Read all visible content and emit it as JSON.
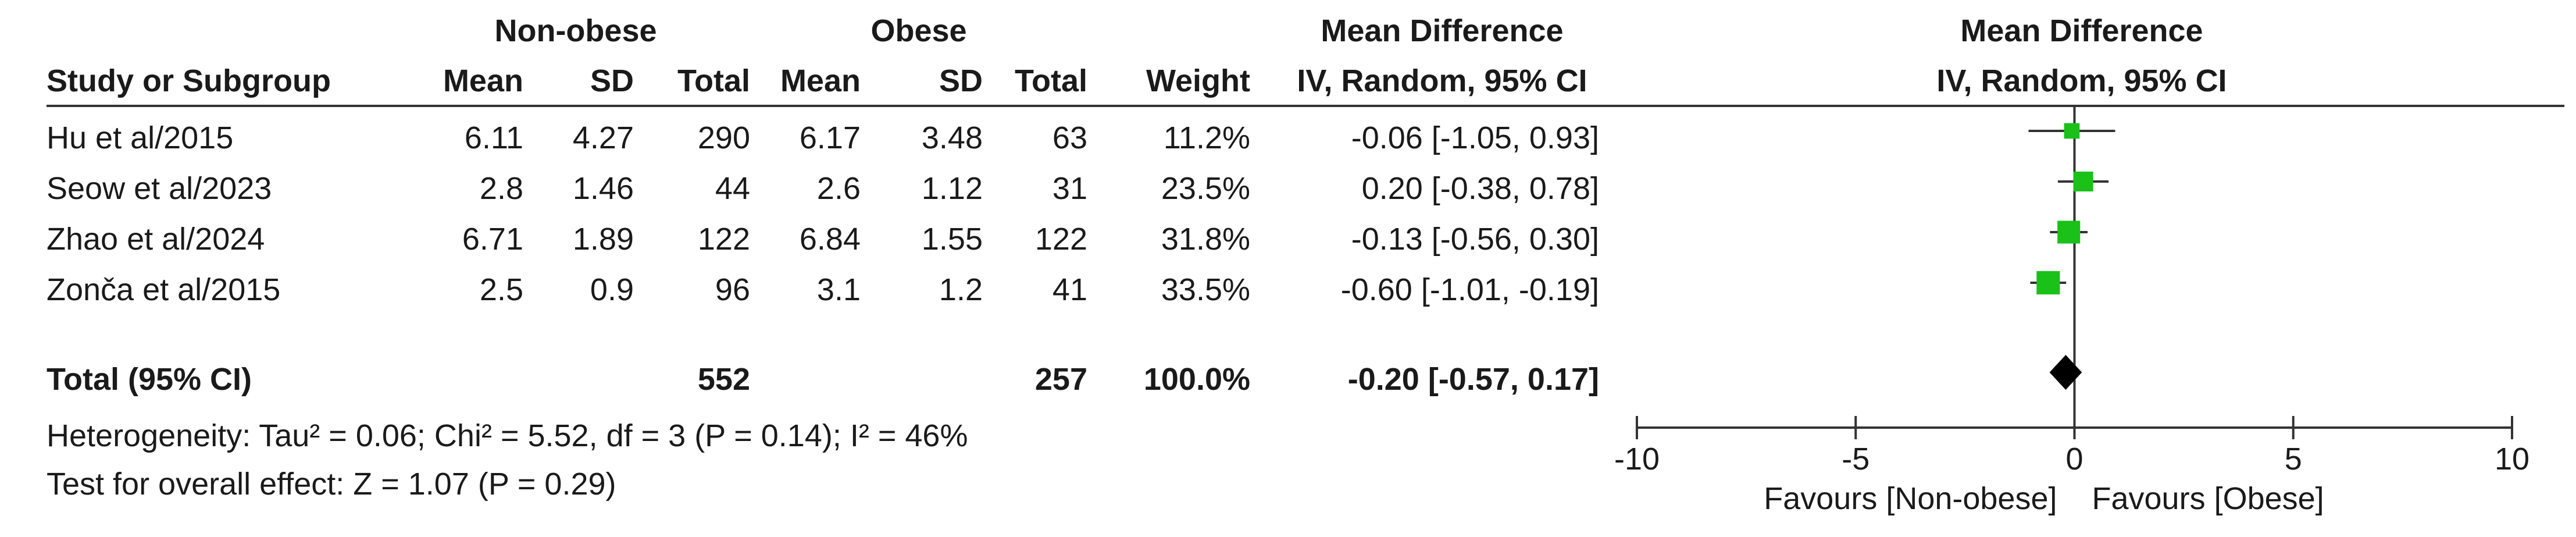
{
  "header": {
    "group1": "Non-obese",
    "group2": "Obese",
    "md_effect_title": "Mean Difference",
    "md_plot_title": "Mean Difference",
    "study_col": "Study or Subgroup",
    "mean1": "Mean",
    "sd1": "SD",
    "total1": "Total",
    "mean2": "Mean",
    "sd2": "SD",
    "total2": "Total",
    "weight": "Weight",
    "method": "IV, Random, 95% CI",
    "plot_method": "IV, Random, 95% CI"
  },
  "studies": [
    {
      "name": "Hu et al/2015",
      "mean1": "6.11",
      "sd1": "4.27",
      "total1": "290",
      "mean2": "6.17",
      "sd2": "3.48",
      "total2": "63",
      "weight": "11.2%",
      "ci": "-0.06 [-1.05, 0.93]"
    },
    {
      "name": "Seow et al/2023",
      "mean1": "2.8",
      "sd1": "1.46",
      "total1": "44",
      "mean2": "2.6",
      "sd2": "1.12",
      "total2": "31",
      "weight": "23.5%",
      "ci": "0.20 [-0.38, 0.78]"
    },
    {
      "name": "Zhao et al/2024",
      "mean1": "6.71",
      "sd1": "1.89",
      "total1": "122",
      "mean2": "6.84",
      "sd2": "1.55",
      "total2": "122",
      "weight": "31.8%",
      "ci": "-0.13 [-0.56, 0.30]"
    },
    {
      "name": "Zonča et al/2015",
      "mean1": "2.5",
      "sd1": "0.9",
      "total1": "96",
      "mean2": "3.1",
      "sd2": "1.2",
      "total2": "41",
      "weight": "33.5%",
      "ci": "-0.60 [-1.01, -0.19]"
    }
  ],
  "total": {
    "label": "Total (95% CI)",
    "total1": "552",
    "total2": "257",
    "weight": "100.0%",
    "ci": "-0.20 [-0.57, 0.17]"
  },
  "footer": {
    "heterogeneity": "Heterogeneity: Tau² = 0.06; Chi² = 5.52, df = 3 (P = 0.14); I² = 46%",
    "overall": "Test for overall effect: Z = 1.07 (P = 0.29)"
  },
  "colors": {
    "marker": "#19c119",
    "diamond": "#000000",
    "line": "#333333"
  },
  "chart_data": {
    "type": "forest",
    "xlim": [
      -10,
      10
    ],
    "ticks": [
      -10,
      -5,
      0,
      5,
      10
    ],
    "tick_labels": [
      "-10",
      "-5",
      "0",
      "5",
      "10"
    ],
    "favours_left": "Favours [Non-obese]",
    "favours_right": "Favours [Obese]",
    "series": [
      {
        "study": "Hu et al/2015",
        "md": -0.06,
        "lo": -1.05,
        "hi": 0.93,
        "weight": 11.2
      },
      {
        "study": "Seow et al/2023",
        "md": 0.2,
        "lo": -0.38,
        "hi": 0.78,
        "weight": 23.5
      },
      {
        "study": "Zhao et al/2024",
        "md": -0.13,
        "lo": -0.56,
        "hi": 0.3,
        "weight": 31.8
      },
      {
        "study": "Zonča et al/2015",
        "md": -0.6,
        "lo": -1.01,
        "hi": -0.19,
        "weight": 33.5
      }
    ],
    "pooled": {
      "md": -0.2,
      "lo": -0.57,
      "hi": 0.17
    }
  }
}
